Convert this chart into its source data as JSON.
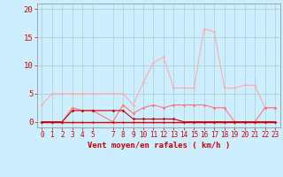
{
  "background_color": "#cceeff",
  "grid_color": "#aacccc",
  "xlabel": "Vent moyen/en rafales ( km/h )",
  "xlabel_color": "#cc0000",
  "xlabel_fontsize": 6.5,
  "tick_color": "#cc0000",
  "tick_fontsize": 5.5,
  "ytick_fontsize": 6.5,
  "yticks": [
    0,
    5,
    10,
    15,
    20
  ],
  "ylim": [
    -1,
    21
  ],
  "xlim": [
    -0.5,
    23.5
  ],
  "xticks": [
    0,
    1,
    2,
    3,
    4,
    5,
    7,
    8,
    9,
    10,
    11,
    12,
    13,
    14,
    15,
    16,
    17,
    18,
    19,
    20,
    21,
    22,
    23
  ],
  "line1_x": [
    0,
    1,
    2,
    3,
    4,
    5,
    7,
    8,
    9,
    10,
    11,
    12,
    13,
    14,
    15,
    16,
    17,
    18,
    19,
    20,
    21,
    22,
    23
  ],
  "line1_y": [
    3,
    5,
    5,
    5,
    5,
    5,
    5,
    5,
    3,
    7,
    10.5,
    11.5,
    6,
    6,
    6,
    16.5,
    16,
    6,
    6,
    6.5,
    6.5,
    2.5,
    2.5
  ],
  "line1_color": "#ffaaaa",
  "line1_marker": "D",
  "line1_markersize": 1.8,
  "line1_linewidth": 0.8,
  "line2_x": [
    0,
    1,
    2,
    3,
    4,
    5,
    7,
    8,
    9,
    10,
    11,
    12,
    13,
    14,
    15,
    16,
    17,
    18,
    19,
    20,
    21,
    22,
    23
  ],
  "line2_y": [
    0,
    0,
    0,
    2.5,
    2,
    2,
    0,
    3,
    1.5,
    2.5,
    3,
    2.5,
    3,
    3,
    3,
    3,
    2.5,
    2.5,
    0,
    0,
    0,
    2.5,
    2.5
  ],
  "line2_color": "#ff7777",
  "line2_marker": "D",
  "line2_markersize": 1.8,
  "line2_linewidth": 0.8,
  "line3_x": [
    0,
    1,
    2,
    3,
    4,
    5,
    7,
    8,
    9,
    10,
    11,
    12,
    13,
    14,
    15,
    16,
    17,
    18,
    19,
    20,
    21,
    22,
    23
  ],
  "line3_y": [
    0,
    0,
    0,
    2,
    2,
    2,
    2,
    2,
    0.5,
    0.5,
    0.5,
    0.5,
    0.5,
    0,
    0,
    0,
    0,
    0,
    0,
    0,
    0,
    0,
    0
  ],
  "line3_color": "#cc0000",
  "line3_marker": "D",
  "line3_markersize": 1.8,
  "line3_linewidth": 0.8,
  "line4_x": [
    0,
    1,
    2,
    3,
    4,
    5,
    7,
    8,
    9,
    10,
    11,
    12,
    13,
    14,
    15,
    16,
    17,
    18,
    19,
    20,
    21,
    22,
    23
  ],
  "line4_y": [
    0,
    0,
    0,
    0,
    0,
    0,
    0,
    0,
    0,
    0,
    0,
    0,
    0,
    0,
    0,
    0,
    0,
    0,
    0,
    0,
    0,
    0,
    0
  ],
  "line4_color": "#dd0000",
  "line4_marker": "D",
  "line4_markersize": 1.5,
  "line4_linewidth": 1.0
}
